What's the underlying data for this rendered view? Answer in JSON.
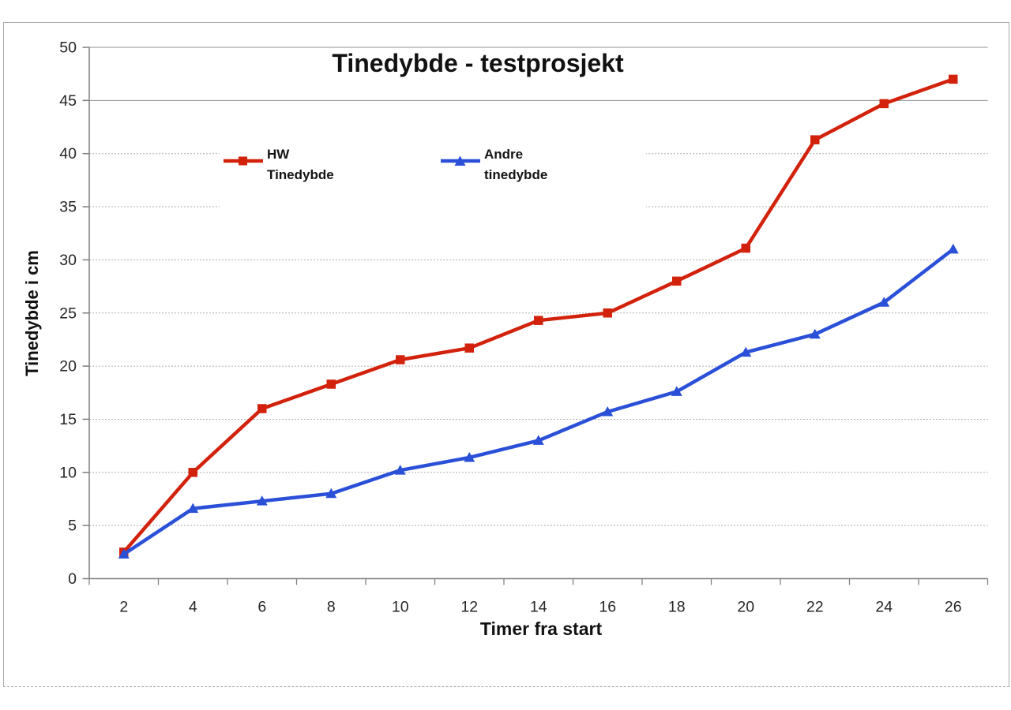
{
  "chart_data": {
    "type": "line",
    "title": "Tinedybde - testprosjekt",
    "xlabel": "Timer fra start",
    "ylabel": "Tinedybde i cm",
    "x": [
      2,
      4,
      6,
      8,
      10,
      12,
      14,
      16,
      18,
      20,
      22,
      24,
      26
    ],
    "xticks": [
      "2",
      "4",
      "6",
      "8",
      "10",
      "12",
      "14",
      "16",
      "18",
      "20",
      "22",
      "24",
      "26"
    ],
    "yticks": [
      0,
      5,
      10,
      15,
      20,
      25,
      30,
      35,
      40,
      45,
      50
    ],
    "ylim": [
      0,
      50
    ],
    "grid": true,
    "legend_position": "inside-top-left",
    "series": [
      {
        "name": "HW Tinedybde",
        "legend_lines": [
          "HW",
          "Tinedybde"
        ],
        "marker": "square",
        "color": "#d2220c",
        "values": [
          2.5,
          10.0,
          16.0,
          18.3,
          20.6,
          21.7,
          24.3,
          25.0,
          28.0,
          31.1,
          41.3,
          44.7,
          47.0
        ]
      },
      {
        "name": "Andre tinedybde",
        "legend_lines": [
          "Andre",
          "tinedybde"
        ],
        "marker": "triangle",
        "color": "#2a50d8",
        "values": [
          2.3,
          6.6,
          7.3,
          8.0,
          10.2,
          11.4,
          13.0,
          15.7,
          17.6,
          21.3,
          23.0,
          26.0,
          31.0
        ]
      }
    ],
    "colors": {
      "gridline_major": "#8f8f8f",
      "gridline_minor": "#adadad",
      "axis": "#7f7f7f",
      "tick_label": "#262626",
      "frame_border": "#ababab"
    }
  }
}
